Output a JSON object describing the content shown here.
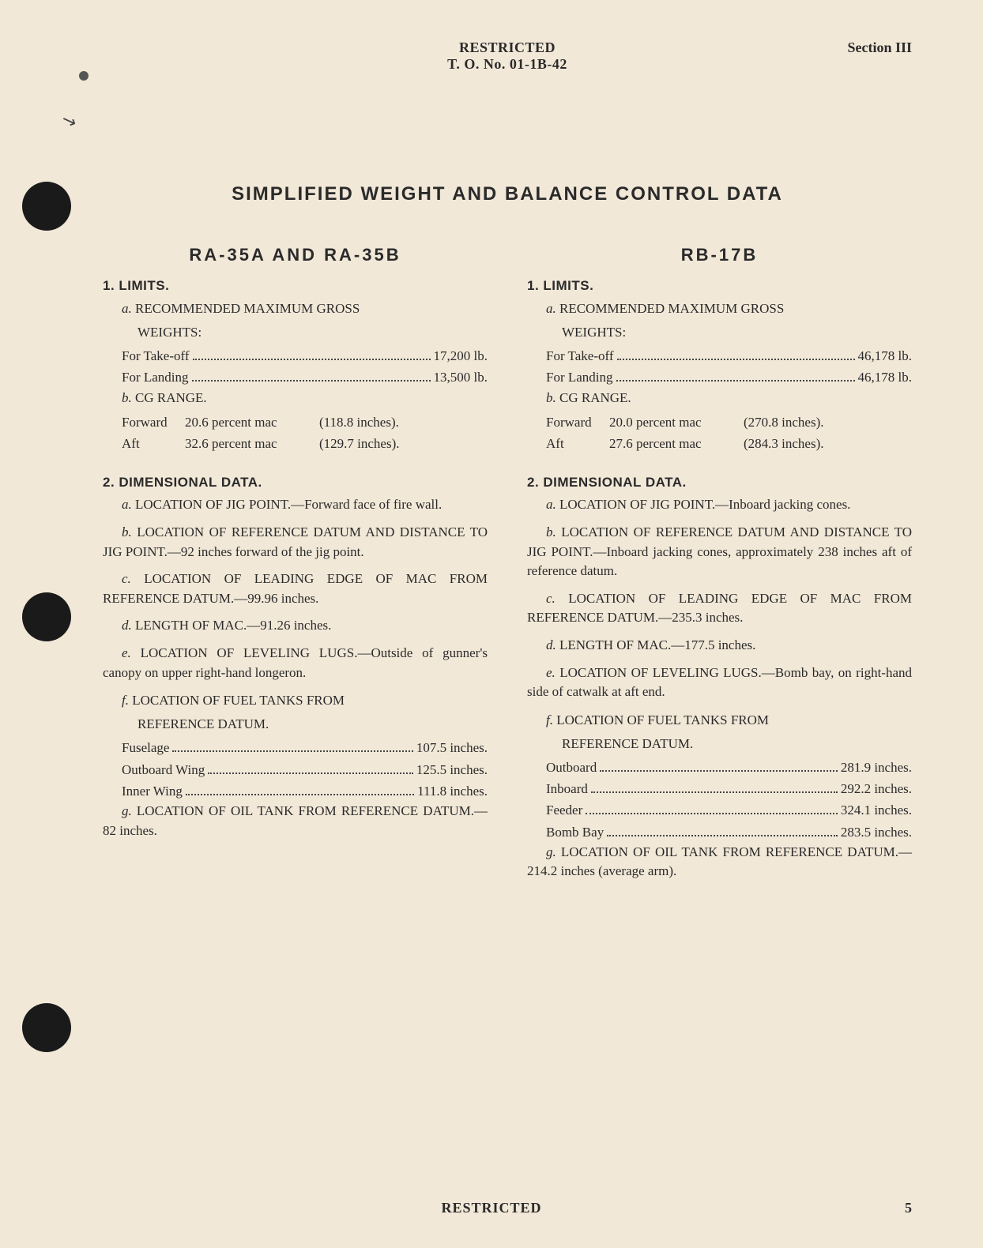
{
  "header": {
    "classification": "RESTRICTED",
    "to_number": "T. O. No. 01-1B-42",
    "section": "Section III"
  },
  "main_title": "SIMPLIFIED WEIGHT AND BALANCE CONTROL DATA",
  "left": {
    "title": "RA-35A AND RA-35B",
    "sec1_head": "1. LIMITS.",
    "a_head": "a.",
    "a_text": " RECOMMENDED MAXIMUM GROSS",
    "a_text2": "WEIGHTS:",
    "takeoff_label": "For Take-off",
    "takeoff_value": "17,200 lb.",
    "landing_label": "For Landing",
    "landing_value": "13,500 lb.",
    "b_head": "b.",
    "b_text": " CG RANGE.",
    "cg1_label": "Forward",
    "cg1_pct": "20.6 percent mac",
    "cg1_in": "(118.8 inches).",
    "cg2_label": "Aft",
    "cg2_pct": "32.6 percent mac",
    "cg2_in": "(129.7 inches).",
    "sec2_head": "2. DIMENSIONAL DATA.",
    "pa": "a. LOCATION OF JIG POINT.—Forward face of fire wall.",
    "pb": "b. LOCATION OF REFERENCE DATUM AND DISTANCE TO JIG POINT.—92 inches forward of the jig point.",
    "pc": "c. LOCATION OF LEADING EDGE OF MAC FROM REFERENCE DATUM.—99.96 inches.",
    "pd": "d. LENGTH OF MAC.—91.26 inches.",
    "pe": "e. LOCATION OF LEVELING LUGS.—Outside of gunner's canopy on upper right-hand longeron.",
    "pf_head": "f.",
    "pf_text": " LOCATION OF FUEL TANKS FROM",
    "pf_text2": "REFERENCE DATUM.",
    "ft1_label": "Fuselage",
    "ft1_value": "107.5 inches.",
    "ft2_label": "Outboard Wing",
    "ft2_value": "125.5 inches.",
    "ft3_label": "Inner Wing",
    "ft3_value": "111.8 inches.",
    "pg": "g. LOCATION OF OIL TANK FROM REFERENCE DATUM.—82 inches."
  },
  "right": {
    "title": "RB-17B",
    "sec1_head": "1. LIMITS.",
    "a_head": "a.",
    "a_text": " RECOMMENDED MAXIMUM GROSS",
    "a_text2": "WEIGHTS:",
    "takeoff_label": "For Take-off",
    "takeoff_value": "46,178 lb.",
    "landing_label": "For Landing",
    "landing_value": "46,178 lb.",
    "b_head": "b.",
    "b_text": " CG RANGE.",
    "cg1_label": "Forward",
    "cg1_pct": "20.0 percent mac",
    "cg1_in": "(270.8 inches).",
    "cg2_label": "Aft",
    "cg2_pct": "27.6 percent mac",
    "cg2_in": "(284.3 inches).",
    "sec2_head": "2. DIMENSIONAL DATA.",
    "pa": "a. LOCATION OF JIG POINT.—Inboard jacking cones.",
    "pb": "b. LOCATION OF REFERENCE DATUM AND DISTANCE TO JIG POINT.—Inboard jacking cones, approximately 238 inches aft of reference datum.",
    "pc": "c. LOCATION OF LEADING EDGE OF MAC FROM REFERENCE DATUM.—235.3 inches.",
    "pd": "d. LENGTH OF MAC.—177.5 inches.",
    "pe": "e. LOCATION OF LEVELING LUGS.—Bomb bay, on right-hand side of catwalk at aft end.",
    "pf_head": "f.",
    "pf_text": " LOCATION OF FUEL TANKS FROM",
    "pf_text2": "REFERENCE DATUM.",
    "ft1_label": "Outboard",
    "ft1_value": "281.9 inches.",
    "ft2_label": "Inboard",
    "ft2_value": "292.2 inches.",
    "ft3_label": "Feeder",
    "ft3_value": "324.1 inches.",
    "ft4_label": "Bomb Bay",
    "ft4_value": "283.5 inches.",
    "pg": "g. LOCATION OF OIL TANK FROM REFERENCE DATUM.—214.2 inches (average arm)."
  },
  "footer": {
    "classification": "RESTRICTED",
    "page_number": "5"
  },
  "colors": {
    "paper": "#f2e8d8",
    "ink": "#2a2a2a",
    "hole": "#1a1a1a"
  }
}
